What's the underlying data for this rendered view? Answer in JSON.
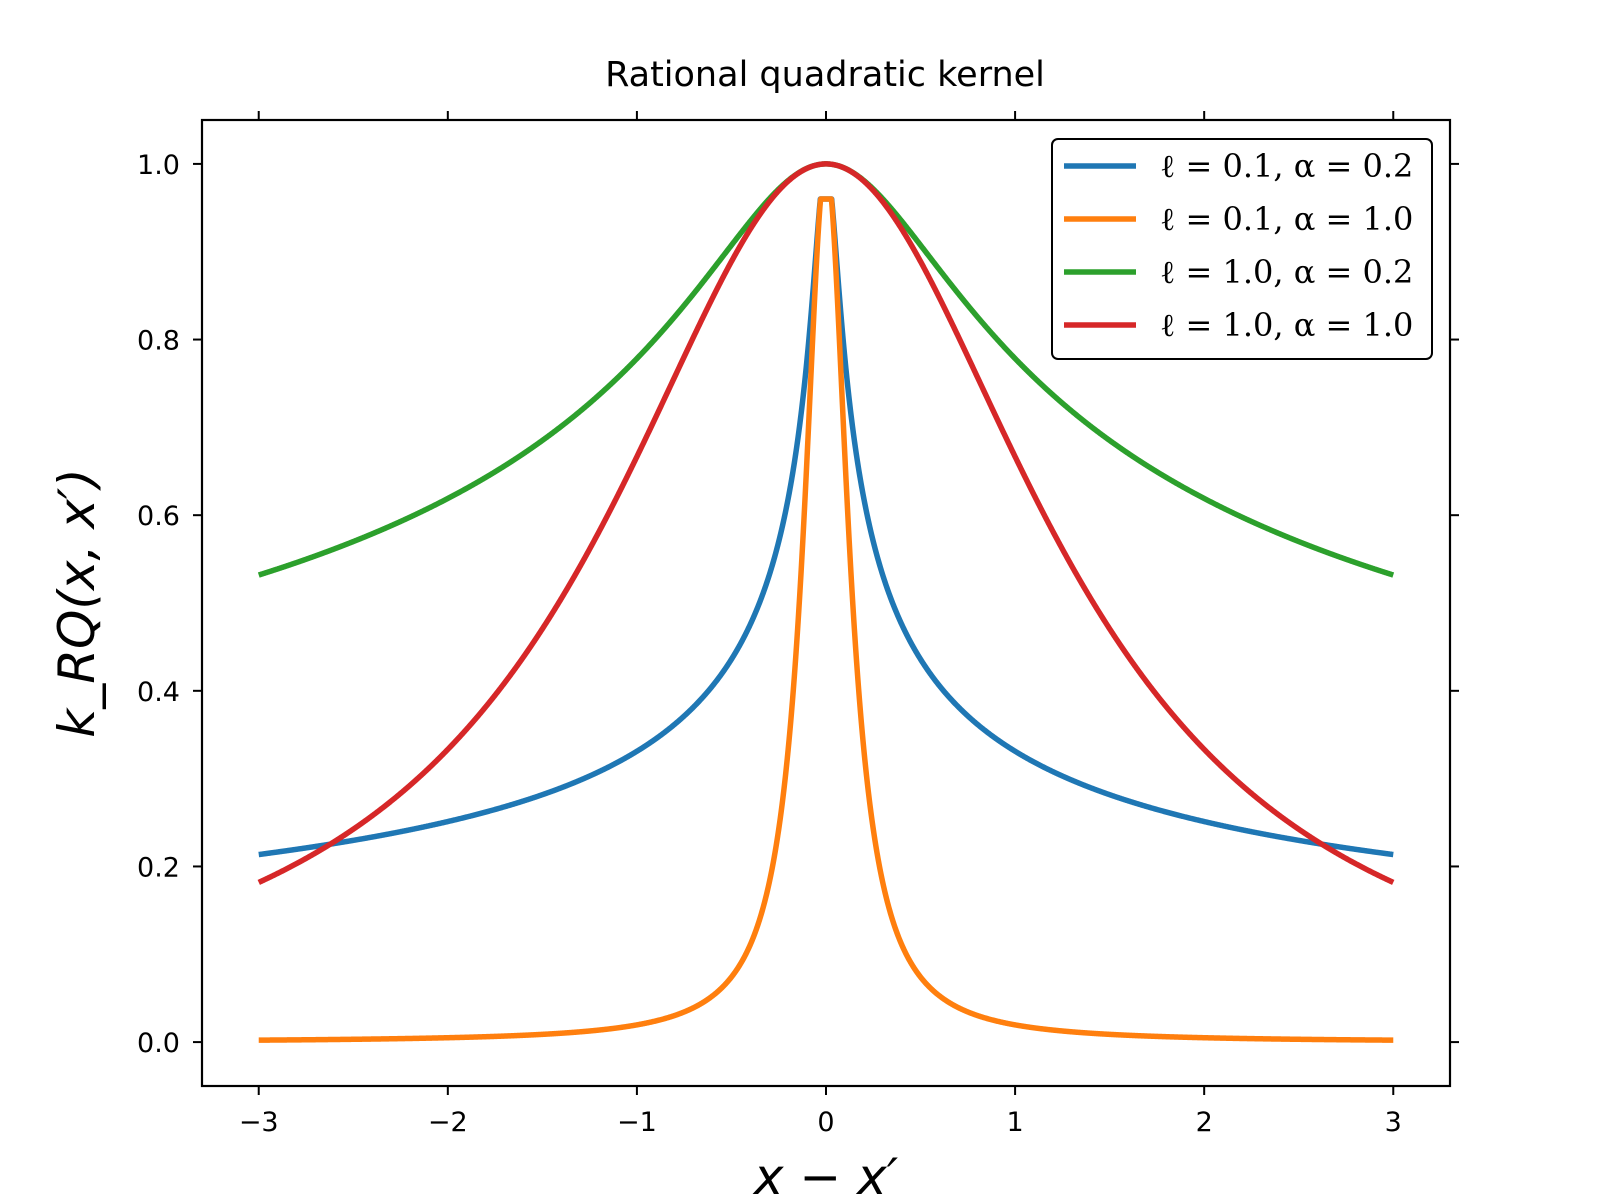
{
  "chart_data": {
    "type": "line",
    "title": "Rational quadratic kernel",
    "xlabel": "x − x′",
    "ylabel": "k_RQ(x, x′)",
    "xlim": [
      -3.3,
      3.3
    ],
    "ylim": [
      -0.05,
      1.05
    ],
    "xticks": [
      -3,
      -2,
      -1,
      0,
      1,
      2,
      3
    ],
    "xtick_labels": [
      "−3",
      "−2",
      "−1",
      "0",
      "1",
      "2",
      "3"
    ],
    "yticks": [
      0.0,
      0.2,
      0.4,
      0.6,
      0.8,
      1.0
    ],
    "ytick_labels": [
      "0.0",
      "0.2",
      "0.4",
      "0.6",
      "0.8",
      "1.0"
    ],
    "grid": false,
    "legend_position": "top-right",
    "x_domain": [
      -3,
      3
    ],
    "series": [
      {
        "name": "ℓ = 0.1, α = 0.2",
        "length_scale": 0.1,
        "alpha": 0.2,
        "peak": 0.96,
        "color": "#1f77b4"
      },
      {
        "name": "ℓ = 0.1, α = 1.0",
        "length_scale": 0.1,
        "alpha": 1.0,
        "peak": 0.96,
        "color": "#ff7f0e"
      },
      {
        "name": "ℓ = 1.0, α = 0.2",
        "length_scale": 1.0,
        "alpha": 0.2,
        "peak": 1.0,
        "color": "#2ca02c"
      },
      {
        "name": "ℓ = 1.0, α = 1.0",
        "length_scale": 1.0,
        "alpha": 1.0,
        "peak": 1.0,
        "color": "#d62728"
      }
    ]
  }
}
